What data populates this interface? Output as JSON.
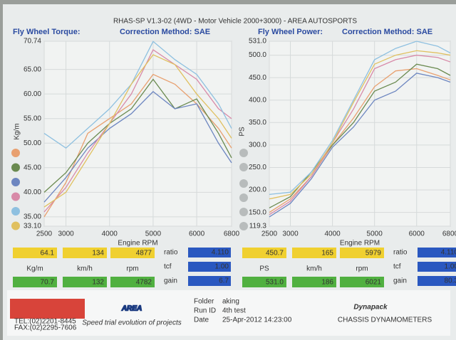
{
  "header": {
    "title": "RHAS-SP V1.3-02  (4WD - Motor Vehicle 2000+3000) - AREA AUTOSPORTS"
  },
  "chart_data": [
    {
      "type": "line",
      "title": "Fly Wheel Torque:",
      "subtitle": "Correction Method: SAE",
      "x_label": "Engine RPM",
      "y_label": "Kg/m",
      "x": [
        2500,
        3000,
        3500,
        4000,
        4500,
        5000,
        5500,
        6000,
        6500,
        6800
      ],
      "xlim": [
        2500,
        6800
      ],
      "xticks": [
        2500,
        3000,
        4000,
        5000,
        6000,
        6800
      ],
      "ylim": [
        33.1,
        70.74
      ],
      "yticks": [
        {
          "value": 33.1,
          "label": "33.10"
        },
        {
          "value": 35,
          "label": "35.00"
        },
        {
          "value": 40,
          "label": "40.00"
        },
        {
          "value": 45,
          "label": "45.00"
        },
        {
          "value": 50,
          "label": "50.00"
        },
        {
          "value": 55,
          "label": "55.00"
        },
        {
          "value": 60,
          "label": "60.00"
        },
        {
          "value": 65,
          "label": "65.00"
        },
        {
          "value": 70.74,
          "label": "70.74"
        }
      ],
      "grid": true,
      "series": [
        {
          "color": "#e8a070",
          "values": [
            35,
            42,
            52,
            55,
            58,
            64,
            62,
            58,
            53,
            49
          ]
        },
        {
          "color": "#6a8a50",
          "values": [
            40,
            44,
            50,
            54,
            57,
            63,
            57,
            59,
            52,
            47
          ]
        },
        {
          "color": "#6d86c0",
          "values": [
            38,
            43,
            49,
            53,
            56,
            60.5,
            57,
            58,
            50,
            46
          ]
        },
        {
          "color": "#d88aa8",
          "values": [
            36,
            41,
            48,
            54,
            60,
            69,
            66,
            63,
            57,
            55
          ]
        },
        {
          "color": "#8ec0e0",
          "values": [
            52,
            49,
            53,
            57,
            62,
            70.7,
            67,
            64,
            58,
            53
          ]
        },
        {
          "color": "#e0c060",
          "values": [
            37,
            40,
            47,
            54,
            62,
            68,
            66,
            60,
            55,
            51
          ]
        }
      ]
    },
    {
      "type": "line",
      "title": "Fly Wheel Power:",
      "subtitle": "Correction Method: SAE",
      "x_label": "Engine RPM",
      "y_label": "PS",
      "x": [
        2500,
        3000,
        3500,
        4000,
        4500,
        5000,
        5500,
        6000,
        6500,
        6800
      ],
      "xlim": [
        2500,
        6800
      ],
      "xticks": [
        2500,
        3000,
        4000,
        5000,
        6000,
        6800
      ],
      "ylim": [
        119.3,
        531.0
      ],
      "yticks": [
        {
          "value": 119.3,
          "label": "119.3"
        },
        {
          "value": 150,
          "label": "150.0"
        },
        {
          "value": 200,
          "label": "200.0"
        },
        {
          "value": 250,
          "label": "250.0"
        },
        {
          "value": 300,
          "label": "300.0"
        },
        {
          "value": 350,
          "label": "350.0"
        },
        {
          "value": 400,
          "label": "400.0"
        },
        {
          "value": 450,
          "label": "450.0"
        },
        {
          "value": 500,
          "label": "500.0"
        },
        {
          "value": 531,
          "label": "531.0"
        }
      ],
      "grid": true,
      "series": [
        {
          "color": "#e8a070",
          "values": [
            150,
            180,
            230,
            300,
            360,
            430,
            465,
            470,
            455,
            445
          ]
        },
        {
          "color": "#6a8a50",
          "values": [
            160,
            185,
            240,
            300,
            350,
            420,
            440,
            480,
            470,
            455
          ]
        },
        {
          "color": "#6d86c0",
          "values": [
            140,
            170,
            225,
            295,
            340,
            400,
            420,
            460,
            450,
            440
          ]
        },
        {
          "color": "#d88aa8",
          "values": [
            145,
            175,
            230,
            305,
            380,
            470,
            490,
            500,
            495,
            485
          ]
        },
        {
          "color": "#8ec0e0",
          "values": [
            190,
            195,
            240,
            310,
            400,
            490,
            515,
            531,
            520,
            505
          ]
        },
        {
          "color": "#e0c060",
          "values": [
            180,
            190,
            235,
            305,
            395,
            480,
            500,
            510,
            505,
            500
          ]
        }
      ]
    }
  ],
  "summary": [
    {
      "top": [
        "64.1",
        "134",
        "4877"
      ],
      "units": [
        "Kg/m",
        "km/h",
        "rpm"
      ],
      "bottom": [
        "70.7",
        "132",
        "4782"
      ],
      "params": [
        [
          "ratio",
          "4.110"
        ],
        [
          "tcf",
          "1.00"
        ],
        [
          "gain",
          "6.7"
        ]
      ]
    },
    {
      "top": [
        "450.7",
        "165",
        "5979"
      ],
      "units": [
        "PS",
        "km/h",
        "rpm"
      ],
      "bottom": [
        "531.0",
        "186",
        "6021"
      ],
      "params": [
        [
          "ratio",
          "4.110"
        ],
        [
          "tcf",
          "1.00"
        ],
        [
          "gain",
          "80.3"
        ]
      ]
    }
  ],
  "footer": {
    "tel": "TEL:(02)2201-8445",
    "fax": "FAX:(02)2295-7606",
    "logo": "AREA",
    "tagline": "Speed trial evolution of projects",
    "fields": [
      [
        "Folder",
        "aking"
      ],
      [
        "Run ID",
        "4th test"
      ],
      [
        "Date",
        "25-Apr-2012 14:23:00"
      ]
    ],
    "brand": "Dynapack",
    "brand_sub": "CHASSIS  DYNAMOMETERS"
  }
}
